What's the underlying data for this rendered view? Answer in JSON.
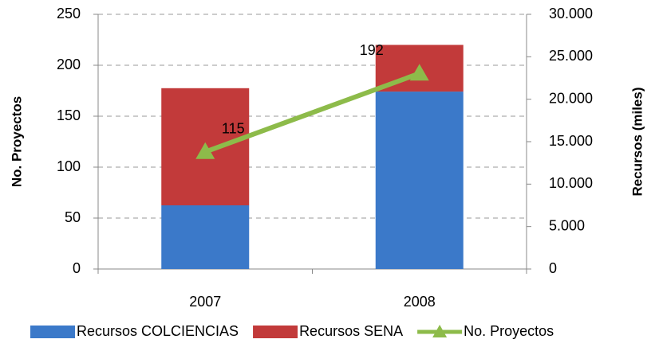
{
  "chart_data": {
    "type": "bar-line",
    "categories": [
      "2007",
      "2008"
    ],
    "ylabel": "No. Proyectos",
    "y2label": "Recursos  (miles)",
    "ylim": [
      0,
      250
    ],
    "yticks": [
      0,
      50,
      100,
      150,
      200,
      250
    ],
    "y2lim": [
      0,
      30000
    ],
    "y2ticks": [
      {
        "value": 0,
        "label": "0"
      },
      {
        "value": 5000,
        "label": "5.000"
      },
      {
        "value": 10000,
        "label": "10.000"
      },
      {
        "value": 15000,
        "label": "15.000"
      },
      {
        "value": 20000,
        "label": "20.000"
      },
      {
        "value": 25000,
        "label": "25.000"
      },
      {
        "value": 30000,
        "label": "30.000"
      }
    ],
    "grid": true,
    "legend": "bottom",
    "series": [
      {
        "name": "Recursos COLCIENCIAS",
        "type": "bar",
        "axis": "y2",
        "color": "#3b79c9",
        "values": [
          7500,
          20900
        ]
      },
      {
        "name": "Recursos SENA",
        "type": "bar",
        "axis": "y2",
        "color": "#c23a3a",
        "values": [
          13800,
          5500
        ]
      },
      {
        "name": "No. Proyectos",
        "type": "line",
        "axis": "y",
        "color": "#8dbb4a",
        "values": [
          115,
          192
        ],
        "value_labels": [
          "115",
          "192"
        ]
      }
    ]
  }
}
